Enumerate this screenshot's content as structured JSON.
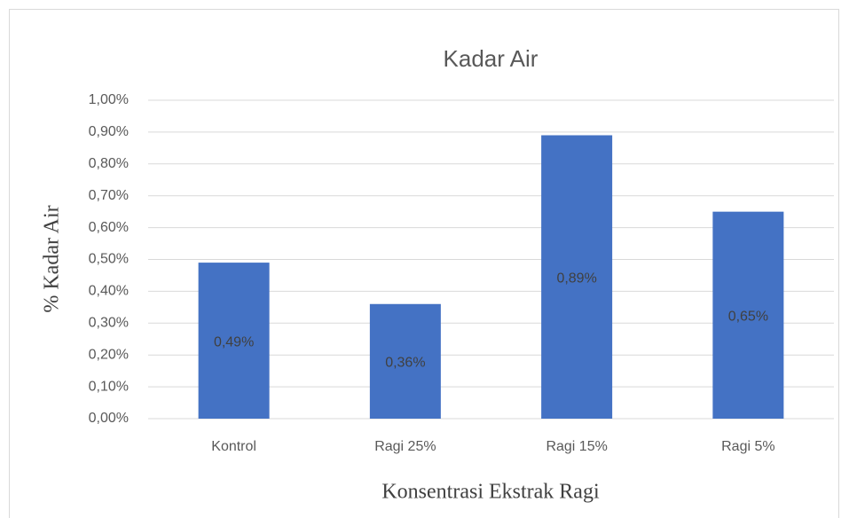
{
  "chart_data": {
    "type": "bar",
    "title": "Kadar Air",
    "x_label": "Konsentrasi Ekstrak Ragi",
    "y_label": "% Kadar Air",
    "categories": [
      "Kontrol",
      "Ragi 25%",
      "Ragi 15%",
      "Ragi 5%"
    ],
    "values": [
      0.49,
      0.36,
      0.89,
      0.65
    ],
    "value_labels": [
      "0,49%",
      "0,36%",
      "0,89%",
      "0,65%"
    ],
    "color": "#4472c4",
    "ylim": [
      0,
      1
    ],
    "yticks": [
      {
        "value": 0,
        "label": "0,00%"
      },
      {
        "value": 0.1,
        "label": "0,10%"
      },
      {
        "value": 0.2,
        "label": "0,20%"
      },
      {
        "value": 0.3,
        "label": "0,30%"
      },
      {
        "value": 0.4,
        "label": "0,40%"
      },
      {
        "value": 0.5,
        "label": "0,50%"
      },
      {
        "value": 0.6,
        "label": "0,60%"
      },
      {
        "value": 0.7,
        "label": "0,70%"
      },
      {
        "value": 0.8,
        "label": "0,80%"
      },
      {
        "value": 0.9,
        "label": "0,90%"
      },
      {
        "value": 1,
        "label": "1,00%"
      }
    ],
    "grid": true
  }
}
